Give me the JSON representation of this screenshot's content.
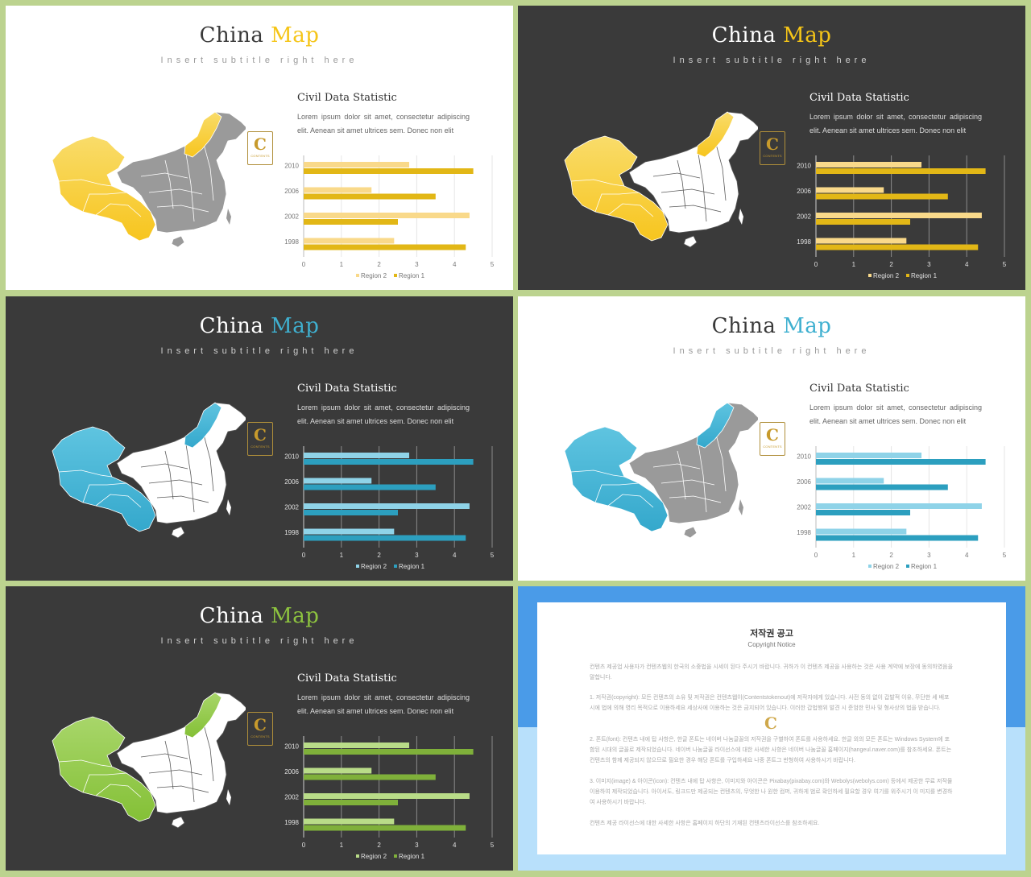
{
  "slides": [
    {
      "theme": "light",
      "accent": "#f5c518",
      "title_word1": "China",
      "title_word2": "Map",
      "subtitle": "Insert  subtitle  right  here",
      "stat_title": "Civil Data Statistic",
      "stat_body": "Lorem ipsum dolor sit amet, consectetur adipiscing elit. Aenean sit amet ultrices sem. Donec non elit",
      "badge_letter": "C",
      "badge_text": "CONTENTS",
      "highlight": "#f7c51e",
      "highlight_light": "#f9dc6a",
      "other_region": "#9a9a9a"
    },
    {
      "theme": "dark",
      "accent": "#f5c518",
      "title_word1": "China",
      "title_word2": "Map",
      "subtitle": "Insert  subtitle  right  here",
      "stat_title": "Civil Data Statistic",
      "stat_body": "Lorem ipsum dolor sit amet, consectetur adipiscing elit. Aenean sit amet ultrices sem. Donec non elit",
      "badge_letter": "C",
      "badge_text": "CONTENTS",
      "highlight": "#f7c51e",
      "highlight_light": "#f9dc6a",
      "other_region": "#ffffff"
    },
    {
      "theme": "dark",
      "accent": "#3fb0d0",
      "title_word1": "China",
      "title_word2": "Map",
      "subtitle": "Insert  subtitle  right  here",
      "stat_title": "Civil Data Statistic",
      "stat_body": "Lorem ipsum dolor sit amet, consectetur adipiscing elit. Aenean sit amet ultrices sem. Donec non elit",
      "badge_letter": "C",
      "badge_text": "CONTENTS",
      "highlight": "#34a8cc",
      "highlight_light": "#5fc4e0",
      "other_region": "#ffffff"
    },
    {
      "theme": "light",
      "accent": "#3fb0d0",
      "title_word1": "China",
      "title_word2": "Map",
      "subtitle": "Insert  subtitle  right  here",
      "stat_title": "Civil Data Statistic",
      "stat_body": "Lorem ipsum dolor sit amet, consectetur adipiscing elit. Aenean sit amet ultrices sem. Donec non elit",
      "badge_letter": "C",
      "badge_text": "CONTENTS",
      "highlight": "#34a8cc",
      "highlight_light": "#5fc4e0",
      "other_region": "#9a9a9a"
    },
    {
      "theme": "dark",
      "accent": "#8dc33f",
      "title_word1": "China",
      "title_word2": "Map",
      "subtitle": "Insert  subtitle  right  here",
      "stat_title": "Civil Data Statistic",
      "stat_body": "Lorem ipsum dolor sit amet, consectetur adipiscing elit. Aenean sit amet ultrices sem. Donec non elit",
      "badge_letter": "C",
      "badge_text": "CONTENTS",
      "highlight": "#84c036",
      "highlight_light": "#a8d66a",
      "other_region": "#ffffff"
    }
  ],
  "chart_colors": [
    {
      "region2": "#f9d98a",
      "region1": "#e2b716"
    },
    {
      "region2": "#f9d98a",
      "region1": "#e2b716"
    },
    {
      "region2": "#8fd3e8",
      "region1": "#2c9fbf"
    },
    {
      "region2": "#8fd3e8",
      "region1": "#2c9fbf"
    },
    {
      "region2": "#b9dc88",
      "region1": "#7fb03a"
    }
  ],
  "chart_data": [
    {
      "type": "bar",
      "orientation": "horizontal",
      "categories": [
        "2010",
        "2006",
        "2002",
        "1998"
      ],
      "series": [
        {
          "name": "Region 2",
          "values": [
            2.8,
            1.8,
            4.4,
            2.4
          ]
        },
        {
          "name": "Region 1",
          "values": [
            4.5,
            3.5,
            2.5,
            4.3
          ]
        }
      ],
      "xlim": [
        0,
        5
      ],
      "xticks": [
        "0",
        "1",
        "2",
        "3",
        "4",
        "5"
      ],
      "legend": "bottom",
      "grid": true
    }
  ],
  "copyright": {
    "title": "저작권 공고",
    "subtitle": "Copyright Notice",
    "intro": "컨텐츠 제공업 사용자가 컨텐츠웹의 한국의 소중법을 시세이 된다 주시기 바랍니다. 귀하가 이 컨텐츠 제공을 사용하는 것은 사용 계약에 보장에 동의하였음을 말합니다.",
    "p1": "1. 저작권(copyright): 모든 컨텐츠의 소유 및 저작권은 컨텐츠웹이(Contentstokenout)에 저작자에게 있습니다. 사전 동의 없이 갑발적 이유, 무단한 세 배포 시에 법에 의해 영리 목적으로 이용하세요 세상사에 이용하는 것은 금지되어 있습니다. 이러한 갑법행위 발견 시 준엄한 민사 및 형사상의 법을 받습니다.",
    "p2": "2. 폰트(font): 컨텐츠 내에 탑 사항은, 한글 폰트는 네이버 나눔글꼴의 저작권을 구별하여 폰트를 사용하세요. 한글 외의 모든 폰트는 Windows System에 포함된 시대의 글꼴로 제작되었습니다. 네이버 나눔글꼴 라이선스에 대한 사세한 사항은 네이버 나눔글꼴 홈페이지(hangeul.naver.com)를 참조하세요. 폰트는 컨텐츠의 함께 제공되지 않으므로 필요한 경우 해당 폰트를 구입하세요 나중 폰트그 번형하여 사용하시기 바랍니다.",
    "p3": "3. 이미지(image) & 아이콘(icon): 컨텐츠 내에 탑 사항은, 이미지와 아이콘은 Pixabay(pixabay.com)와 Webolys(webolys.com) 등에서 제공한 무료 저작물 이용하여 제작되었습니다. 아이서도, 링크드만 제공되는 컨텐츠의, 무엇한 나 원한 컴퍼, 귀하게 범로 확인하세 필요할 경우 여기를 위주시기 이 미지를 변경하여 사용하시기 바랍니다.",
    "p4": "컨텐츠 제공 라이선스에 대한 사세한 사항은 홈페이지 하단의 기재된 컨텐츠라이선스를 참조하세요.",
    "watermark_letter": "C",
    "bg_top": "#4a9be8",
    "bg_bottom": "#b8e0fb"
  }
}
